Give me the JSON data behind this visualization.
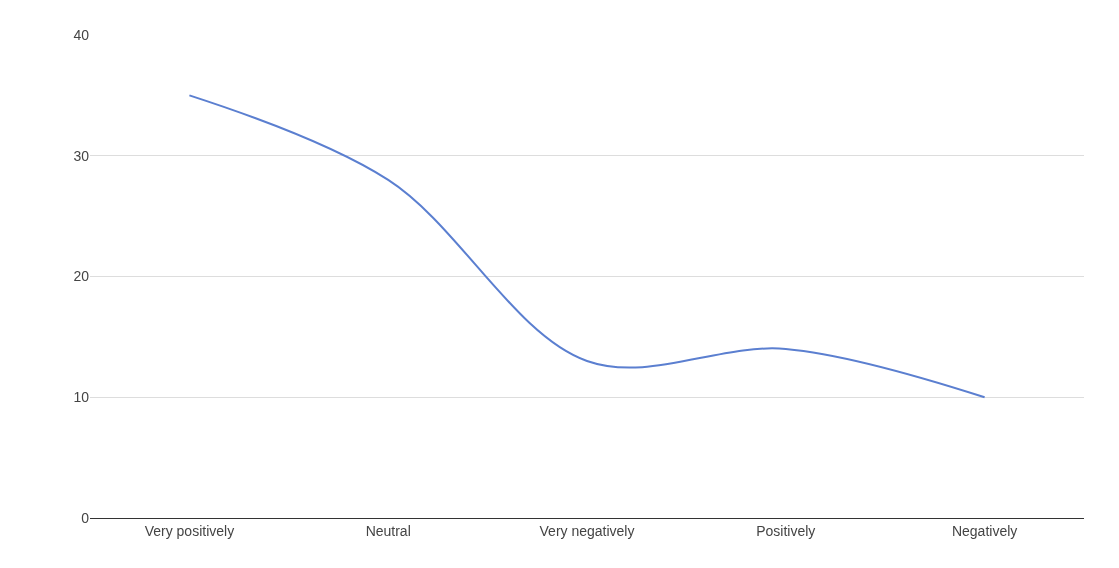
{
  "chart_data": {
    "type": "line",
    "categories": [
      "Very positively",
      "Neutral",
      "Very negatively",
      "Positively",
      "Negatively"
    ],
    "series": [
      {
        "color": "#5b7fd0",
        "values": [
          35,
          28,
          13,
          14,
          10
        ]
      }
    ],
    "ylim": [
      0,
      40
    ],
    "yticks": [
      0,
      10,
      20,
      30,
      40
    ],
    "grid": "y",
    "marker": "none",
    "line_style": "solid"
  }
}
